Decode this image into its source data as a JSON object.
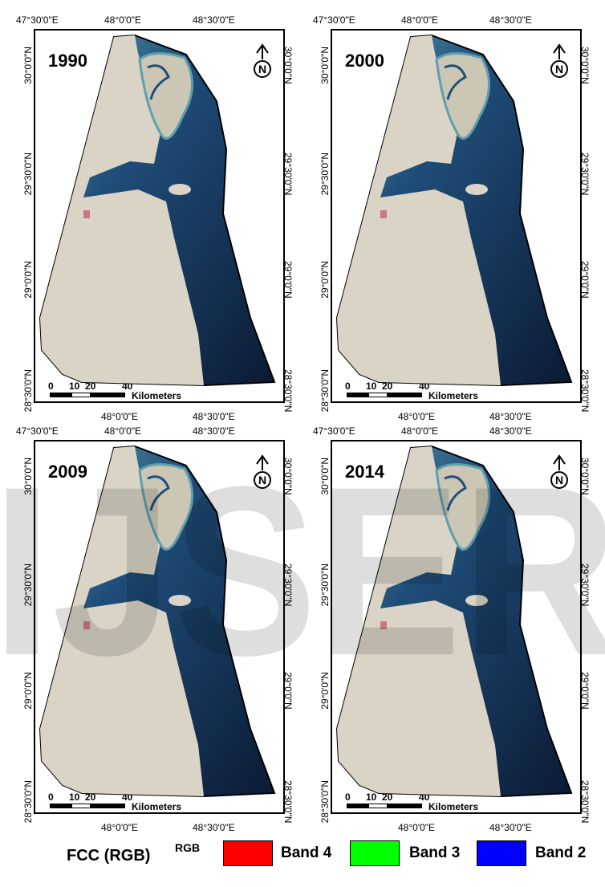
{
  "panels": [
    {
      "year": "1990",
      "top_ticks": [
        "47°30'0\"E",
        "48°0'0\"E",
        "48°30'0\"E"
      ],
      "bottom_ticks": [
        "48°0'0\"E",
        "48°30'0\"E"
      ],
      "left_ticks": [
        "30°0'0\"N",
        "29°30'0\"N",
        "29°0'0\"N",
        "28°30'0\"N"
      ],
      "right_ticks": [
        "30°0'0\"N",
        "29°30'0\"N",
        "29°0'0\"N",
        "28°30'0\"N"
      ]
    },
    {
      "year": "2000",
      "top_ticks": [
        "47°30'0\"E",
        "48°0'0\"E",
        "48°30'0\"E"
      ],
      "bottom_ticks": [
        "48°0'0\"E",
        "48°30'0\"E"
      ],
      "left_ticks": [
        "30°0'0\"N",
        "29°30'0\"N",
        "29°0'0\"N",
        "28°30'0\"N"
      ],
      "right_ticks": [
        "30°0'0\"N",
        "29°30'0\"N",
        "29°0'0\"N",
        "28°30'0\"N"
      ]
    },
    {
      "year": "2009",
      "top_ticks": [
        "47°30'0\"E",
        "48°0'0\"E",
        "48°30'0\"E"
      ],
      "bottom_ticks": [
        "48°0'0\"E",
        "48°30'0\"E"
      ],
      "left_ticks": [
        "30°0'0\"N",
        "29°30'0\"N",
        "29°0'0\"N",
        "28°30'0\"N"
      ],
      "right_ticks": [
        "30°0'0\"N",
        "29°30'0\"N",
        "29°0'0\"N",
        "28°30'0\"N"
      ]
    },
    {
      "year": "2014",
      "top_ticks": [
        "47°30'0\"E",
        "48°0'0\"E",
        "48°30'0\"E"
      ],
      "bottom_ticks": [
        "48°0'0\"E",
        "48°30'0\"E"
      ],
      "left_ticks": [
        "30°0'0\"N",
        "29°30'0\"N",
        "29°0'0\"N",
        "28°30'0\"N"
      ],
      "right_ticks": [
        "30°0'0\"N",
        "29°30'0\"N",
        "29°0'0\"N",
        "28°30'0\"N"
      ]
    }
  ],
  "scale_bar": {
    "numbers": [
      "0",
      "10",
      "20",
      "40"
    ],
    "unit": "Kilometers"
  },
  "north_arrow": "N",
  "legend": {
    "title": "FCC (RGB)",
    "superscript": "RGB",
    "items": [
      {
        "label": "Band 4",
        "color": "#ff0000"
      },
      {
        "label": "Band 3",
        "color": "#00ff00"
      },
      {
        "label": "Band 2",
        "color": "#0000ff"
      }
    ]
  },
  "watermark": "IJSER",
  "colors": {
    "sea_deep": "#0b1a33",
    "sea_mid": "#1f4e7a",
    "sea_shallow": "#5f9fae",
    "land": "#d9d4c6"
  }
}
